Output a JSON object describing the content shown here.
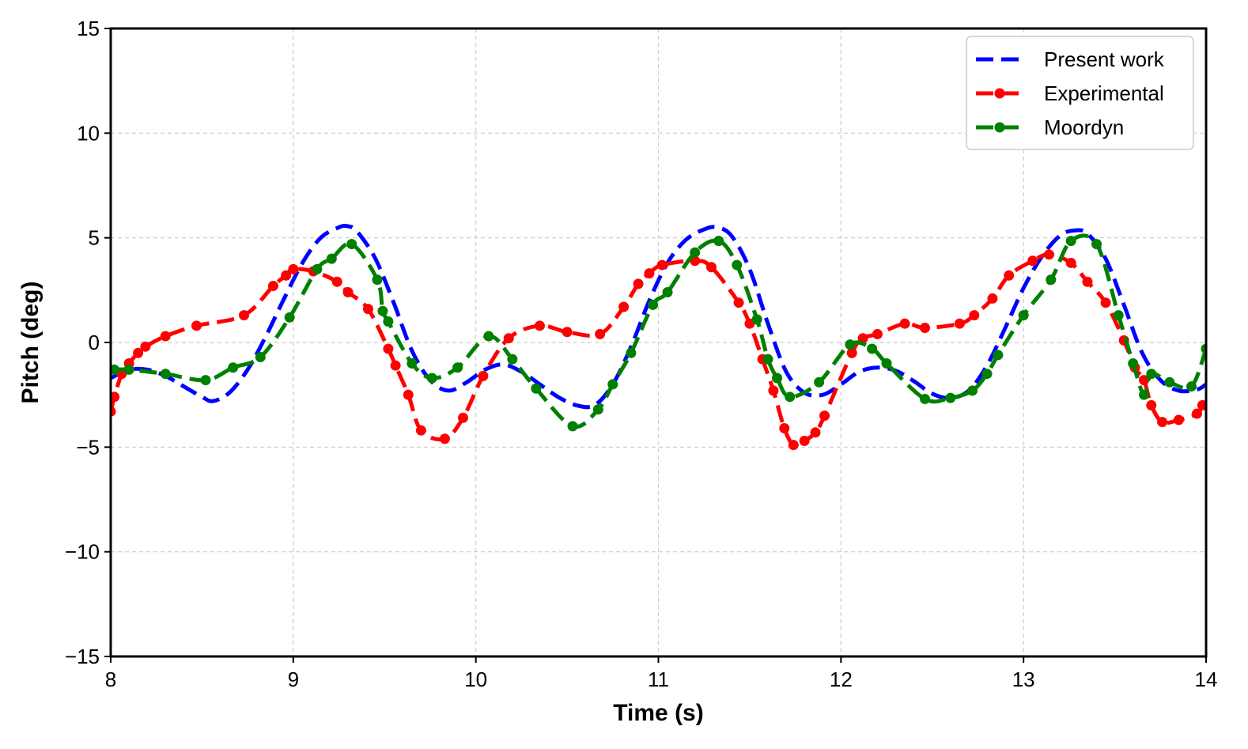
{
  "chart_data": {
    "type": "line",
    "title": "",
    "xlabel": "Time (s)",
    "ylabel": "Pitch (deg)",
    "xlim": [
      8,
      14
    ],
    "ylim": [
      -15,
      15
    ],
    "xticks": [
      8,
      9,
      10,
      11,
      12,
      13,
      14
    ],
    "yticks": [
      -15,
      -10,
      -5,
      0,
      5,
      10,
      15
    ],
    "xtick_labels": [
      "8",
      "9",
      "10",
      "11",
      "12",
      "13",
      "14"
    ],
    "ytick_labels": [
      "−15",
      "−10",
      "−5",
      "0",
      "5",
      "10",
      "15"
    ],
    "grid": true,
    "legend_position": "top-right",
    "series": [
      {
        "name": "Present work",
        "color": "#0000ff",
        "style": "dashed",
        "markers": false,
        "x": [
          8.0,
          8.1,
          8.2,
          8.3,
          8.4,
          8.5,
          8.56,
          8.65,
          8.75,
          8.85,
          8.95,
          9.05,
          9.15,
          9.25,
          9.3,
          9.35,
          9.45,
          9.55,
          9.65,
          9.75,
          9.85,
          9.95,
          10.05,
          10.15,
          10.25,
          10.35,
          10.45,
          10.55,
          10.65,
          10.75,
          10.85,
          10.95,
          11.05,
          11.15,
          11.25,
          11.32,
          11.4,
          11.5,
          11.6,
          11.7,
          11.8,
          11.9,
          12.0,
          12.1,
          12.2,
          12.3,
          12.4,
          12.5,
          12.6,
          12.7,
          12.8,
          12.9,
          13.0,
          13.1,
          13.2,
          13.28,
          13.35,
          13.45,
          13.55,
          13.65,
          13.75,
          13.85,
          13.95,
          14.0
        ],
        "y": [
          -1.7,
          -1.3,
          -1.3,
          -1.6,
          -2.1,
          -2.6,
          -2.8,
          -2.4,
          -1.3,
          0.3,
          2.1,
          3.8,
          5.0,
          5.5,
          5.55,
          5.3,
          4.0,
          1.9,
          -0.4,
          -1.8,
          -2.3,
          -1.9,
          -1.3,
          -1.05,
          -1.4,
          -2.0,
          -2.6,
          -3.0,
          -3.0,
          -2.0,
          -0.2,
          2.0,
          3.8,
          4.9,
          5.4,
          5.5,
          5.1,
          3.5,
          0.9,
          -1.4,
          -2.4,
          -2.5,
          -2.0,
          -1.4,
          -1.2,
          -1.35,
          -1.85,
          -2.45,
          -2.65,
          -2.3,
          -1.1,
          0.7,
          2.6,
          4.1,
          5.1,
          5.35,
          5.2,
          4.0,
          1.8,
          -0.5,
          -1.8,
          -2.3,
          -2.25,
          -2.0
        ]
      },
      {
        "name": "Experimental",
        "color": "#ff0000",
        "style": "dashed",
        "markers": true,
        "x": [
          8.0,
          8.02,
          8.06,
          8.1,
          8.15,
          8.19,
          8.3,
          8.47,
          8.73,
          8.89,
          8.96,
          9.0,
          9.11,
          9.24,
          9.3,
          9.41,
          9.52,
          9.56,
          9.63,
          9.7,
          9.83,
          9.93,
          10.04,
          10.18,
          10.35,
          10.5,
          10.68,
          10.81,
          10.89,
          10.95,
          11.02,
          11.2,
          11.29,
          11.44,
          11.5,
          11.57,
          11.63,
          11.69,
          11.74,
          11.8,
          11.86,
          11.91,
          12.06,
          12.12,
          12.2,
          12.35,
          12.46,
          12.65,
          12.73,
          12.83,
          12.92,
          13.05,
          13.14,
          13.26,
          13.35,
          13.45,
          13.55,
          13.61,
          13.66,
          13.7,
          13.76,
          13.85,
          13.95,
          13.98
        ],
        "y": [
          -3.3,
          -2.6,
          -1.5,
          -1.0,
          -0.5,
          -0.2,
          0.3,
          0.8,
          1.3,
          2.7,
          3.2,
          3.5,
          3.4,
          2.9,
          2.4,
          1.6,
          -0.3,
          -1.1,
          -2.5,
          -4.2,
          -4.6,
          -3.6,
          -1.6,
          0.2,
          0.8,
          0.5,
          0.4,
          1.7,
          2.8,
          3.3,
          3.7,
          3.9,
          3.6,
          1.9,
          0.9,
          -0.8,
          -2.3,
          -4.1,
          -4.9,
          -4.7,
          -4.3,
          -3.5,
          -0.5,
          0.2,
          0.4,
          0.9,
          0.7,
          0.9,
          1.3,
          2.1,
          3.2,
          3.9,
          4.2,
          3.8,
          2.9,
          1.9,
          0.1,
          -1.2,
          -1.8,
          -3.0,
          -3.8,
          -3.7,
          -3.4,
          -3.0
        ]
      },
      {
        "name": "Moordyn",
        "color": "#008000",
        "style": "dashed",
        "markers": true,
        "x": [
          8.02,
          8.1,
          8.3,
          8.52,
          8.67,
          8.82,
          8.98,
          9.13,
          9.21,
          9.32,
          9.46,
          9.49,
          9.52,
          9.65,
          9.76,
          9.9,
          10.07,
          10.2,
          10.33,
          10.53,
          10.67,
          10.75,
          10.85,
          10.97,
          11.05,
          11.2,
          11.33,
          11.43,
          11.54,
          11.6,
          11.65,
          11.72,
          11.88,
          12.05,
          12.17,
          12.25,
          12.46,
          12.6,
          12.72,
          12.8,
          12.86,
          13.0,
          13.15,
          13.26,
          13.4,
          13.52,
          13.6,
          13.66,
          13.7,
          13.8,
          13.92,
          14.0
        ],
        "y": [
          -1.3,
          -1.3,
          -1.5,
          -1.8,
          -1.2,
          -0.7,
          1.2,
          3.5,
          4.0,
          4.7,
          3.0,
          1.5,
          1.0,
          -1.0,
          -1.7,
          -1.2,
          0.3,
          -0.8,
          -2.2,
          -4.0,
          -3.2,
          -2.0,
          -0.5,
          1.8,
          2.4,
          4.3,
          4.85,
          3.7,
          1.1,
          -0.8,
          -1.7,
          -2.6,
          -1.9,
          -0.1,
          -0.3,
          -1.0,
          -2.7,
          -2.65,
          -2.3,
          -1.5,
          -0.6,
          1.3,
          3.0,
          4.85,
          4.7,
          1.3,
          -1.0,
          -2.5,
          -1.5,
          -1.9,
          -2.1,
          -0.3
        ]
      }
    ]
  }
}
